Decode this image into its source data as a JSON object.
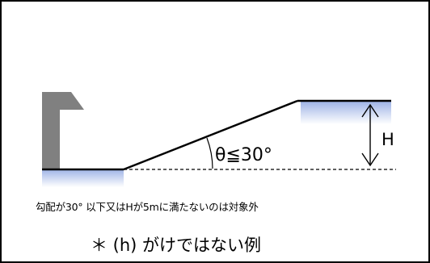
{
  "diagram": {
    "angle_label": "θ≦30°",
    "height_label": "H",
    "caption": "勾配が30° 以下又はHが5mに満たないのは対象外",
    "example_title": "＊ (h) がけではない例"
  },
  "colors": {
    "line": "#000000",
    "wall": "#808080",
    "ground_fill_top": "#9fb4e6",
    "ground_fill_bottom": "#ffffff"
  }
}
